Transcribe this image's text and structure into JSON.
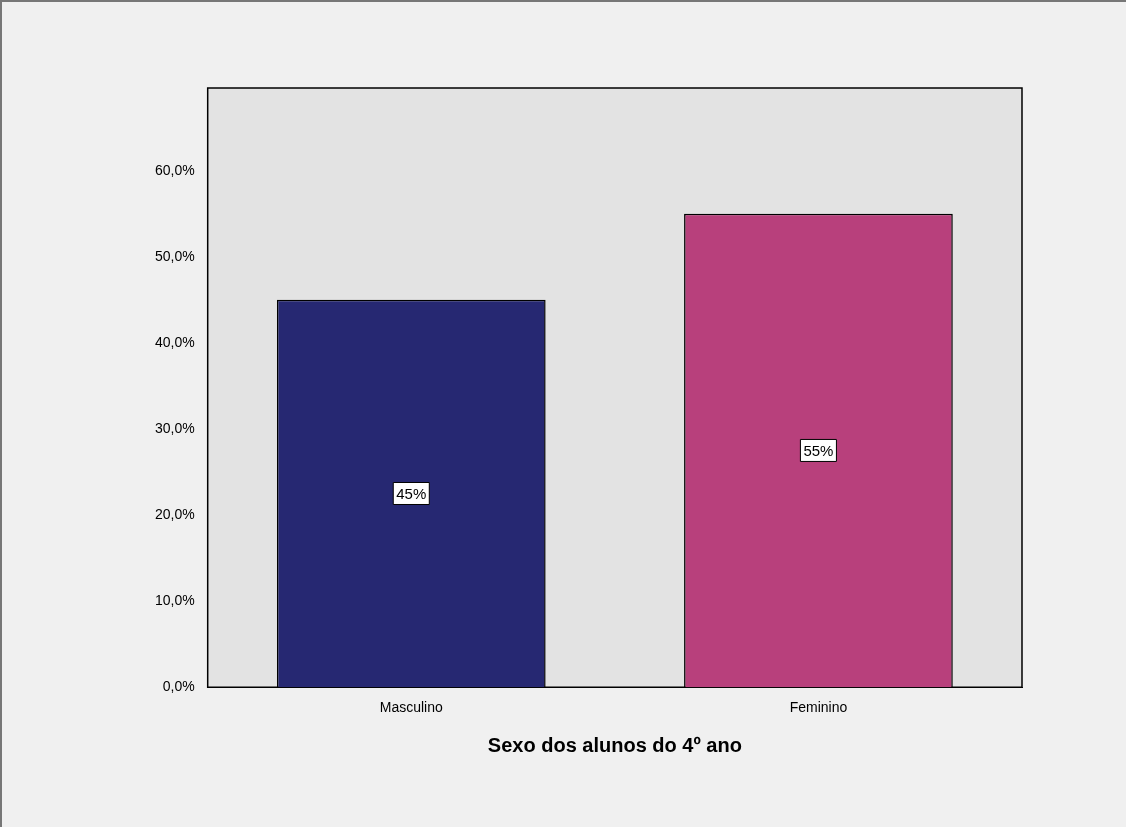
{
  "chart_data": {
    "type": "bar",
    "xlabel": "Sexo dos alunos do 4º ano",
    "categories": [
      "Masculino",
      "Feminino"
    ],
    "colors": [
      "#262872",
      "#b8407c"
    ],
    "values": [
      45,
      55
    ],
    "value_labels": [
      "45%",
      "55%"
    ],
    "ylim": [
      0,
      69.6
    ],
    "yticks": [
      {
        "value": 0,
        "label": "0,0%"
      },
      {
        "value": 10,
        "label": "10,0%"
      },
      {
        "value": 20,
        "label": "20,0%"
      },
      {
        "value": 30,
        "label": "30,0%"
      },
      {
        "value": 40,
        "label": "40,0%"
      },
      {
        "value": 50,
        "label": "50,0%"
      },
      {
        "value": 60,
        "label": "60,0%"
      }
    ],
    "grid": false,
    "legend": false
  }
}
